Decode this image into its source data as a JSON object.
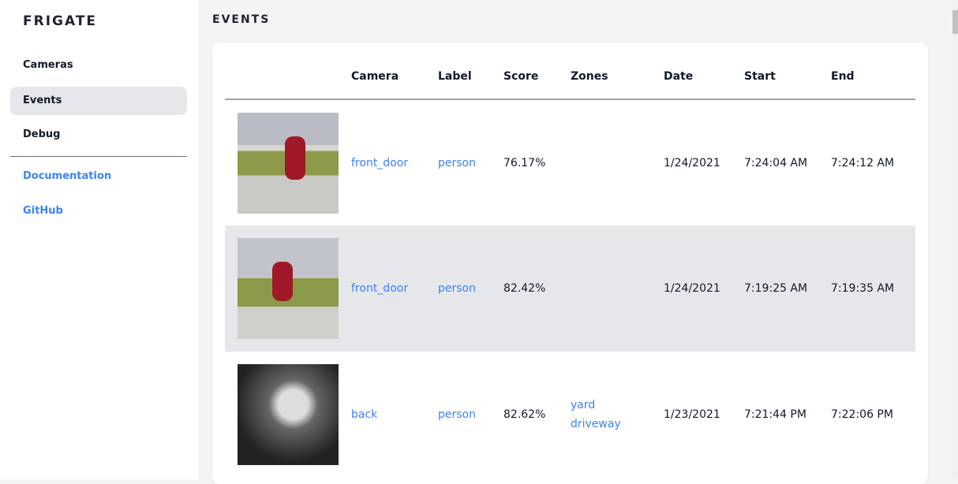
{
  "sidebar": {
    "brand": "FRIGATE",
    "items": [
      {
        "label": "Cameras"
      },
      {
        "label": "Events",
        "active": true
      },
      {
        "label": "Debug"
      }
    ],
    "links": [
      {
        "label": "Documentation"
      },
      {
        "label": "GitHub"
      }
    ]
  },
  "page": {
    "title": "EVENTS"
  },
  "table": {
    "headers": [
      "",
      "Camera",
      "Label",
      "Score",
      "Zones",
      "Date",
      "Start",
      "End"
    ],
    "rows": [
      {
        "camera": "front_door",
        "label": "person",
        "score": "76.17%",
        "zones": [
          "",
          ""
        ],
        "date": "1/24/2021",
        "start": "7:24:04 AM",
        "end": "7:24:12 AM"
      },
      {
        "camera": "front_door",
        "label": "person",
        "score": "82.42%",
        "zones": [
          "",
          ""
        ],
        "date": "1/24/2021",
        "start": "7:19:25 AM",
        "end": "7:19:35 AM"
      },
      {
        "camera": "back",
        "label": "person",
        "score": "82.62%",
        "zones": [
          "yard",
          "driveway"
        ],
        "date": "1/23/2021",
        "start": "7:21:44 PM",
        "end": "7:22:06 PM"
      }
    ]
  },
  "colors": {
    "link": "#3b82f6",
    "active_bg": "#e5e7eb"
  }
}
